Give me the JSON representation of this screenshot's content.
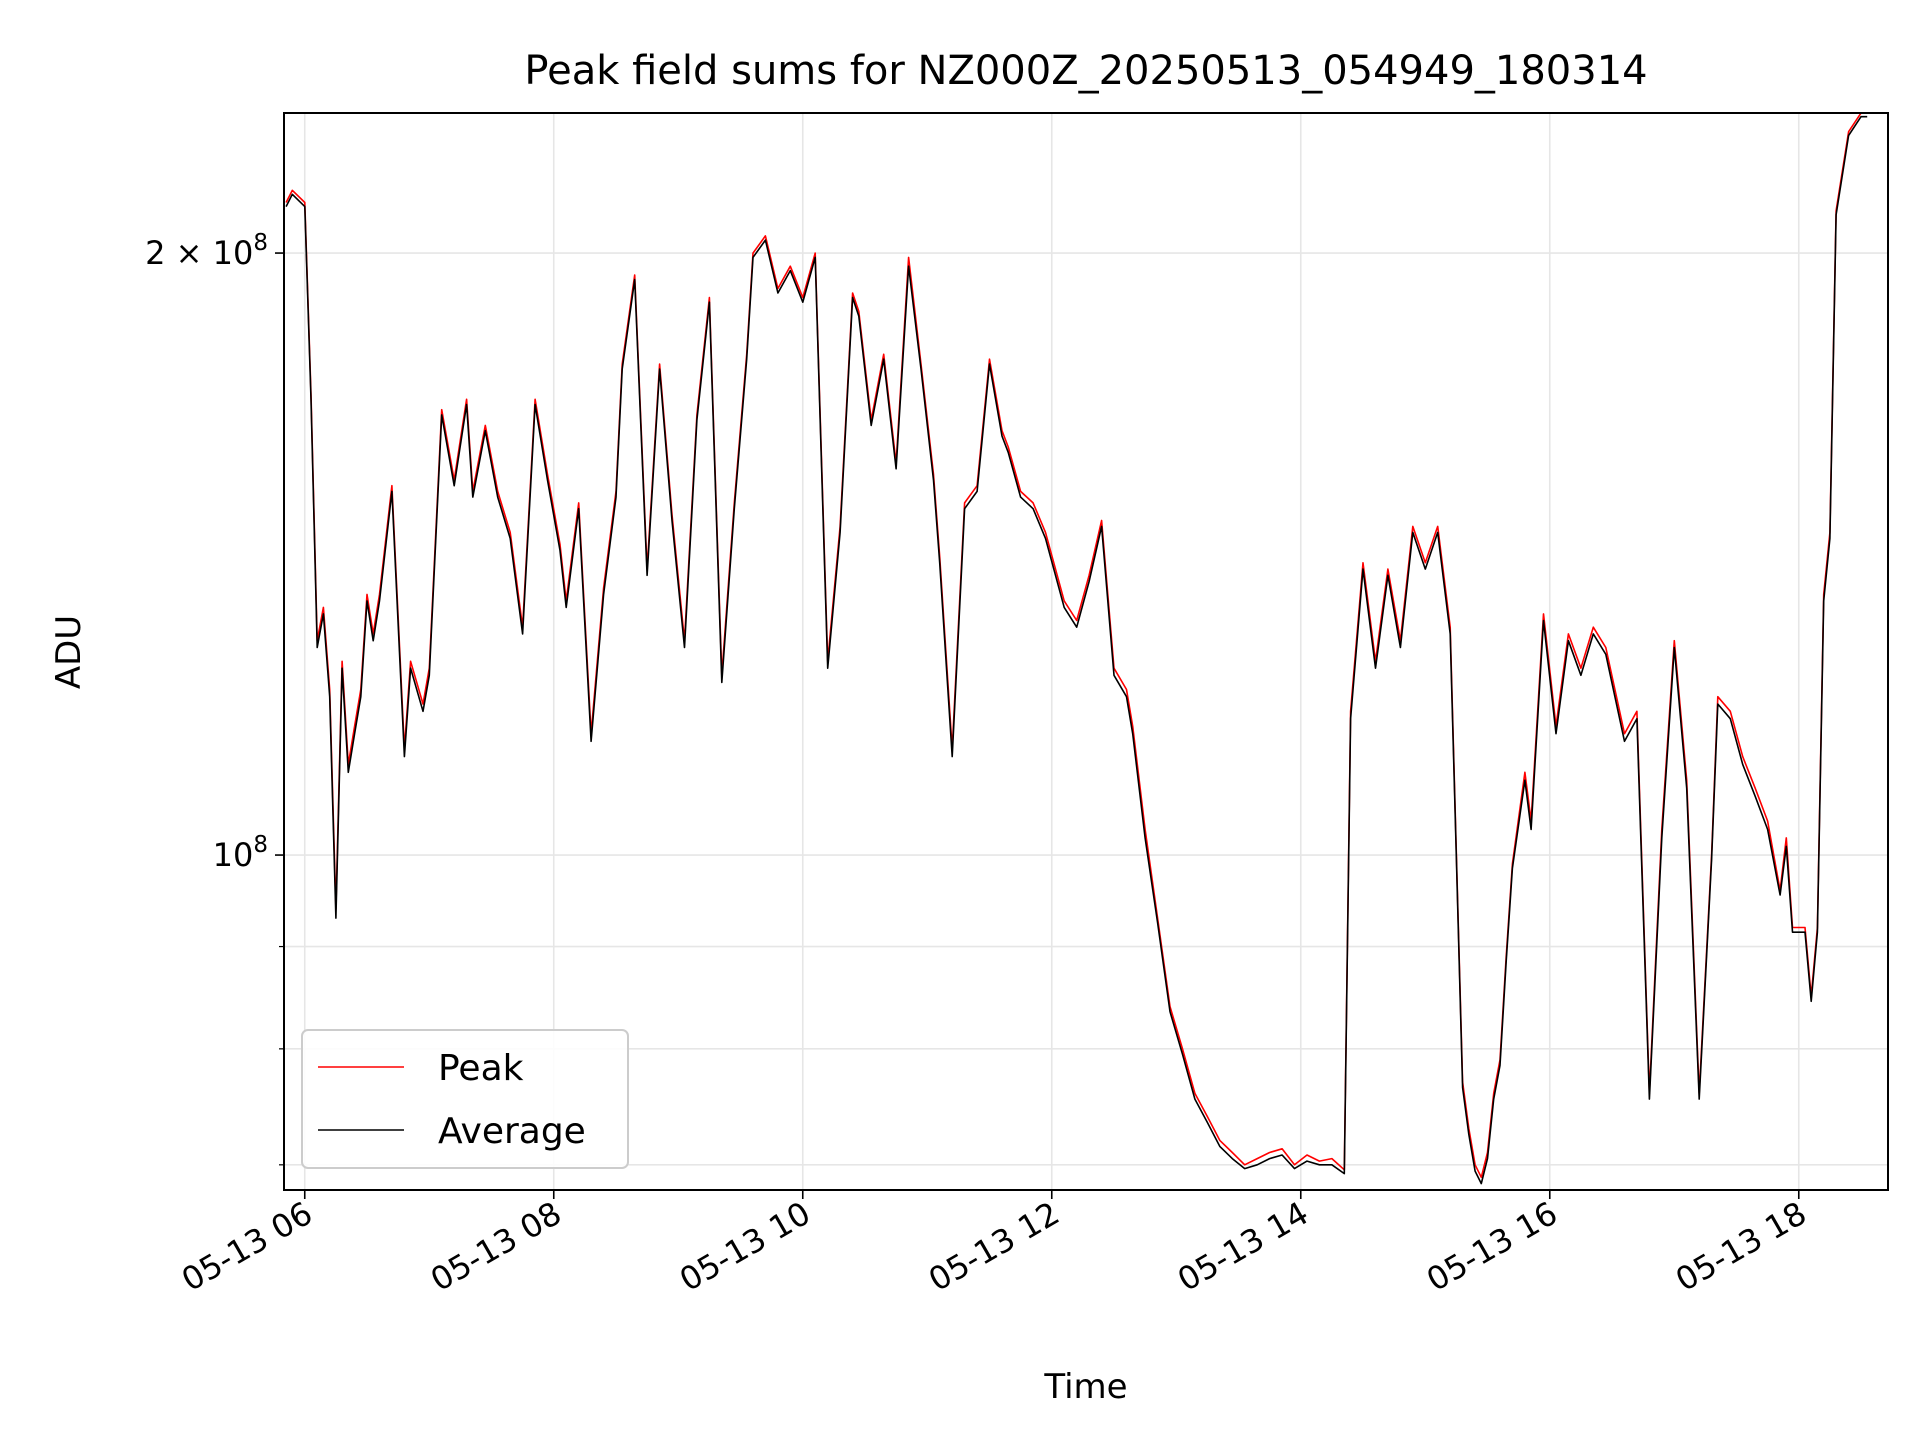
{
  "chart_data": {
    "type": "line",
    "title": "Peak field sums for NZ000Z_20250513_054949_180314",
    "xlabel": "Time",
    "ylabel": "ADU",
    "y_scale": "log",
    "ylim": [
      68000000,
      235000000
    ],
    "xlim": [
      "05-13 05:50",
      "05-13 18:43"
    ],
    "grid": true,
    "legend_position": "lower-left",
    "x_ticks": [
      "05-13 06",
      "05-13 08",
      "05-13 10",
      "05-13 12",
      "05-13 14",
      "05-13 16",
      "05-13 18"
    ],
    "x_tick_hours": [
      6,
      8,
      10,
      12,
      14,
      16,
      18
    ],
    "y_major_ticks": [
      {
        "value": 100000000,
        "base": "10",
        "exp": "8",
        "coef": ""
      },
      {
        "value": 200000000,
        "base": "10",
        "exp": "8",
        "coef": "2 × "
      }
    ],
    "y_minor_ticks": [
      70000000,
      80000000,
      90000000
    ],
    "x_hours": [
      5.85,
      5.9,
      6.0,
      6.05,
      6.1,
      6.15,
      6.2,
      6.25,
      6.3,
      6.35,
      6.4,
      6.45,
      6.5,
      6.55,
      6.6,
      6.7,
      6.8,
      6.85,
      6.95,
      7.0,
      7.1,
      7.2,
      7.3,
      7.35,
      7.45,
      7.55,
      7.65,
      7.75,
      7.85,
      7.95,
      8.05,
      8.1,
      8.2,
      8.3,
      8.4,
      8.5,
      8.55,
      8.65,
      8.75,
      8.85,
      8.95,
      9.05,
      9.15,
      9.25,
      9.35,
      9.45,
      9.55,
      9.6,
      9.7,
      9.8,
      9.9,
      10.0,
      10.1,
      10.2,
      10.3,
      10.4,
      10.45,
      10.55,
      10.65,
      10.75,
      10.85,
      10.95,
      11.05,
      11.1,
      11.2,
      11.3,
      11.4,
      11.5,
      11.6,
      11.65,
      11.75,
      11.85,
      11.95,
      12.1,
      12.2,
      12.3,
      12.4,
      12.5,
      12.6,
      12.65,
      12.75,
      12.85,
      12.95,
      13.05,
      13.15,
      13.25,
      13.35,
      13.45,
      13.55,
      13.65,
      13.75,
      13.85,
      13.95,
      14.05,
      14.15,
      14.25,
      14.35,
      14.4,
      14.5,
      14.6,
      14.7,
      14.8,
      14.9,
      15.0,
      15.1,
      15.2,
      15.25,
      15.3,
      15.35,
      15.4,
      15.45,
      15.5,
      15.55,
      15.6,
      15.65,
      15.7,
      15.8,
      15.85,
      15.95,
      16.05,
      16.15,
      16.25,
      16.35,
      16.45,
      16.6,
      16.7,
      16.8,
      16.9,
      17.0,
      17.1,
      17.2,
      17.3,
      17.35,
      17.45,
      17.55,
      17.65,
      17.75,
      17.85,
      17.9,
      17.95,
      18.05,
      18.1,
      18.15,
      18.2,
      18.25,
      18.3,
      18.4,
      18.5,
      18.55,
      18.6,
      18.68
    ],
    "series": [
      {
        "name": "Peak",
        "color": "#ff0000",
        "values": [
          212000000,
          215000000,
          212000000,
          170000000,
          128000000,
          133000000,
          121000000,
          94000000,
          125000000,
          111000000,
          116000000,
          121000000,
          135000000,
          129000000,
          135000000,
          153000000,
          113000000,
          125000000,
          119000000,
          124000000,
          167000000,
          154000000,
          169000000,
          152000000,
          164000000,
          152000000,
          145000000,
          130000000,
          169000000,
          155000000,
          143000000,
          134000000,
          150000000,
          115000000,
          136000000,
          152000000,
          176000000,
          195000000,
          139000000,
          176000000,
          148000000,
          128000000,
          166000000,
          190000000,
          123000000,
          150000000,
          178000000,
          200000000,
          204000000,
          192000000,
          197000000,
          190000000,
          200000000,
          125000000,
          146000000,
          191000000,
          187000000,
          165000000,
          178000000,
          157000000,
          199000000,
          176000000,
          155000000,
          141000000,
          113000000,
          150000000,
          153000000,
          177000000,
          163000000,
          160000000,
          152000000,
          150000000,
          145000000,
          134000000,
          131000000,
          138000000,
          147000000,
          124000000,
          121000000,
          116000000,
          103000000,
          93000000,
          84000000,
          80000000,
          76000000,
          74000000,
          72000000,
          71000000,
          70000000,
          70500000,
          71000000,
          71300000,
          70000000,
          70800000,
          70300000,
          70500000,
          69600000,
          118000000,
          140000000,
          125000000,
          139000000,
          128000000,
          146000000,
          140000000,
          146000000,
          130000000,
          100000000,
          77000000,
          73000000,
          70000000,
          69000000,
          71000000,
          76000000,
          79000000,
          89000000,
          99000000,
          110000000,
          104000000,
          132000000,
          116000000,
          129000000,
          124000000,
          130000000,
          127000000,
          115000000,
          118000000,
          76000000,
          103000000,
          128000000,
          109000000,
          76000000,
          100000000,
          120000000,
          118000000,
          112000000,
          108000000,
          104000000,
          96000000,
          102000000,
          92000000,
          92000000,
          85000000,
          92000000,
          135000000,
          145000000,
          210000000,
          230000000,
          235000000,
          235000000
        ]
      },
      {
        "name": "Average",
        "color": "#000000",
        "values": [
          211000000,
          214000000,
          211000000,
          169000000,
          127000000,
          132000000,
          120000000,
          93000000,
          124000000,
          110000000,
          115000000,
          120000000,
          134000000,
          128000000,
          134000000,
          152000000,
          112000000,
          124000000,
          118000000,
          123000000,
          166000000,
          153000000,
          168000000,
          151000000,
          163000000,
          151000000,
          144000000,
          129000000,
          168000000,
          154000000,
          142000000,
          133000000,
          149000000,
          114000000,
          135000000,
          151000000,
          175000000,
          194000000,
          138000000,
          175000000,
          147000000,
          127000000,
          165000000,
          189000000,
          122000000,
          149000000,
          177000000,
          199000000,
          203000000,
          191000000,
          196000000,
          189000000,
          199000000,
          124000000,
          145000000,
          190000000,
          186000000,
          164000000,
          177000000,
          156000000,
          197000000,
          175000000,
          154000000,
          140000000,
          112000000,
          149000000,
          152000000,
          176000000,
          162000000,
          159000000,
          151000000,
          149000000,
          144000000,
          133000000,
          130000000,
          137000000,
          146000000,
          123000000,
          120000000,
          115000000,
          102000000,
          92500000,
          83500000,
          79500000,
          75500000,
          73500000,
          71500000,
          70500000,
          69700000,
          70000000,
          70500000,
          70800000,
          69700000,
          70300000,
          70000000,
          70000000,
          69300000,
          117000000,
          139000000,
          124000000,
          138000000,
          127000000,
          145000000,
          139000000,
          145000000,
          129000000,
          99500000,
          76500000,
          72500000,
          69500000,
          68500000,
          70500000,
          75500000,
          78500000,
          88500000,
          98500000,
          109000000,
          103000000,
          131000000,
          115000000,
          128000000,
          123000000,
          129000000,
          126000000,
          114000000,
          117000000,
          75500000,
          102000000,
          127000000,
          108000000,
          75500000,
          99500000,
          119000000,
          117000000,
          111000000,
          107000000,
          103000000,
          95500000,
          101000000,
          91500000,
          91500000,
          84500000,
          91500000,
          134000000,
          144000000,
          209000000,
          229000000,
          234000000,
          234000000
        ]
      }
    ]
  }
}
